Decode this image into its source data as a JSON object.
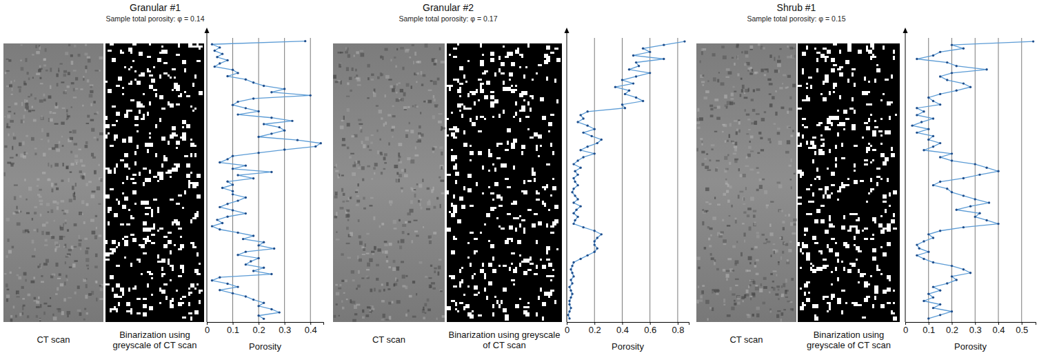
{
  "chart_data": [
    {
      "type": "line",
      "title": "Granular #1",
      "subtitle": "Sample total porosity: φ = 0.14",
      "annotations": [
        "CT scan",
        "Binarization using greyscale of CT scan"
      ],
      "ylabel": "Porosity",
      "orientation": "horizontal",
      "tick_labels": "y",
      "grid": true,
      "color": "#5b9bd5",
      "marker": "circle",
      "line_style": "solid",
      "xlim": [
        -1,
        88
      ],
      "ylim": [
        0,
        0.45
      ],
      "yticks": [
        0,
        0.1,
        0.2,
        0.3,
        0.4
      ],
      "x": [
        0,
        1,
        2,
        3,
        4,
        5,
        6,
        7,
        8,
        9,
        10,
        11,
        12,
        13,
        14,
        15,
        16,
        17,
        18,
        19,
        20,
        21,
        22,
        23,
        24,
        25,
        26,
        27,
        28,
        29,
        30,
        31,
        32,
        33,
        34,
        35,
        36,
        37,
        38,
        39,
        40,
        41,
        42,
        43,
        44,
        45,
        46,
        47,
        48,
        49,
        50,
        51,
        52,
        53,
        54,
        55,
        56,
        57,
        58,
        59,
        60,
        61,
        62,
        63,
        64,
        65,
        66,
        67,
        68,
        69,
        70,
        71,
        72,
        73,
        74,
        75,
        76,
        77,
        78,
        79,
        80,
        81,
        82,
        83,
        84,
        85,
        86,
        87
      ],
      "values": [
        0.38,
        0.02,
        0.05,
        0.03,
        0.06,
        0.04,
        0.08,
        0.05,
        0.03,
        0.1,
        0.12,
        0.08,
        0.15,
        0.18,
        0.22,
        0.3,
        0.25,
        0.4,
        0.18,
        0.12,
        0.1,
        0.15,
        0.2,
        0.12,
        0.25,
        0.33,
        0.22,
        0.28,
        0.3,
        0.25,
        0.2,
        0.35,
        0.44,
        0.42,
        0.3,
        0.2,
        0.1,
        0.08,
        0.05,
        0.15,
        0.1,
        0.25,
        0.12,
        0.18,
        0.08,
        0.1,
        0.06,
        0.1,
        0.1,
        0.15,
        0.12,
        0.08,
        0.05,
        0.1,
        0.15,
        0.08,
        0.04,
        0.06,
        0.02,
        0.05,
        0.12,
        0.18,
        0.14,
        0.22,
        0.2,
        0.26,
        0.15,
        0.12,
        0.2,
        0.17,
        0.15,
        0.22,
        0.18,
        0.25,
        0.05,
        0.02,
        0.08,
        0.12,
        0.05,
        0.1,
        0.15,
        0.18,
        0.22,
        0.2,
        0.25,
        0.28,
        0.2,
        0.22
      ]
    },
    {
      "type": "line",
      "title": "Granular #2",
      "subtitle": "Sample total porosity: φ = 0.17",
      "annotations": [
        "CT scan",
        "Binarization using greyscale of CT scan"
      ],
      "ylabel": "Porosity",
      "orientation": "horizontal",
      "tick_labels": "y",
      "grid": true,
      "color": "#5b9bd5",
      "marker": "circle",
      "line_style": "solid",
      "xlim": [
        -1,
        80
      ],
      "ylim": [
        0,
        0.88
      ],
      "yticks": [
        0,
        0.2,
        0.4,
        0.6,
        0.8
      ],
      "x": [
        0,
        1,
        2,
        3,
        4,
        5,
        6,
        7,
        8,
        9,
        10,
        11,
        12,
        13,
        14,
        15,
        16,
        17,
        18,
        19,
        20,
        21,
        22,
        23,
        24,
        25,
        26,
        27,
        28,
        29,
        30,
        31,
        32,
        33,
        34,
        35,
        36,
        37,
        38,
        39,
        40,
        41,
        42,
        43,
        44,
        45,
        46,
        47,
        48,
        49,
        50,
        51,
        52,
        53,
        54,
        55,
        56,
        57,
        58,
        59,
        60,
        61,
        62,
        63,
        64,
        65,
        66,
        67,
        68,
        69,
        70,
        71,
        72,
        73,
        74,
        75,
        76,
        77,
        78,
        79
      ],
      "values": [
        0.85,
        0.7,
        0.55,
        0.6,
        0.48,
        0.7,
        0.5,
        0.52,
        0.45,
        0.6,
        0.5,
        0.4,
        0.48,
        0.35,
        0.45,
        0.42,
        0.5,
        0.55,
        0.4,
        0.42,
        0.15,
        0.1,
        0.12,
        0.08,
        0.15,
        0.2,
        0.12,
        0.18,
        0.25,
        0.22,
        0.15,
        0.1,
        0.2,
        0.12,
        0.08,
        0.05,
        0.1,
        0.06,
        0.08,
        0.05,
        0.06,
        0.08,
        0.05,
        0.04,
        0.06,
        0.08,
        0.05,
        0.1,
        0.07,
        0.05,
        0.08,
        0.06,
        0.05,
        0.12,
        0.2,
        0.25,
        0.22,
        0.2,
        0.2,
        0.22,
        0.2,
        0.15,
        0.1,
        0.05,
        0.04,
        0.03,
        0.04,
        0.05,
        0.03,
        0.04,
        0.02,
        0.03,
        0.04,
        0.03,
        0.02,
        0.02,
        0.03,
        0.02,
        0.01,
        0.02
      ]
    },
    {
      "type": "line",
      "title": "Shrub #1",
      "subtitle": "Sample total porosity: φ = 0.15",
      "annotations": [
        "CT scan",
        "Binarization using greyscale of CT scan"
      ],
      "ylabel": "Porosity",
      "orientation": "horizontal",
      "tick_labels": "y",
      "grid": true,
      "color": "#5b9bd5",
      "marker": "circle",
      "line_style": "solid",
      "xlim": [
        -1,
        80
      ],
      "ylim": [
        0,
        0.56
      ],
      "yticks": [
        0,
        0.1,
        0.2,
        0.3,
        0.4,
        0.5
      ],
      "x": [
        0,
        1,
        2,
        3,
        4,
        5,
        6,
        7,
        8,
        9,
        10,
        11,
        12,
        13,
        14,
        15,
        16,
        17,
        18,
        19,
        20,
        21,
        22,
        23,
        24,
        25,
        26,
        27,
        28,
        29,
        30,
        31,
        32,
        33,
        34,
        35,
        36,
        37,
        38,
        39,
        40,
        41,
        42,
        43,
        44,
        45,
        46,
        47,
        48,
        49,
        50,
        51,
        52,
        53,
        54,
        55,
        56,
        57,
        58,
        59,
        60,
        61,
        62,
        63,
        64,
        65,
        66,
        67,
        68,
        69,
        70,
        71,
        72,
        73,
        74,
        75,
        76,
        77,
        78,
        79
      ],
      "values": [
        0.55,
        0.2,
        0.25,
        0.15,
        0.12,
        0.05,
        0.18,
        0.22,
        0.35,
        0.2,
        0.15,
        0.18,
        0.25,
        0.28,
        0.22,
        0.15,
        0.1,
        0.12,
        0.15,
        0.05,
        0.08,
        0.05,
        0.12,
        0.07,
        0.03,
        0.1,
        0.05,
        0.12,
        0.1,
        0.15,
        0.12,
        0.08,
        0.2,
        0.15,
        0.2,
        0.3,
        0.35,
        0.4,
        0.32,
        0.25,
        0.15,
        0.12,
        0.18,
        0.2,
        0.25,
        0.3,
        0.36,
        0.28,
        0.22,
        0.32,
        0.3,
        0.35,
        0.4,
        0.25,
        0.15,
        0.1,
        0.12,
        0.08,
        0.05,
        0.06,
        0.1,
        0.05,
        0.08,
        0.12,
        0.2,
        0.25,
        0.28,
        0.2,
        0.22,
        0.18,
        0.12,
        0.15,
        0.1,
        0.12,
        0.08,
        0.15,
        0.12,
        0.2,
        0.15,
        0.1
      ]
    }
  ]
}
